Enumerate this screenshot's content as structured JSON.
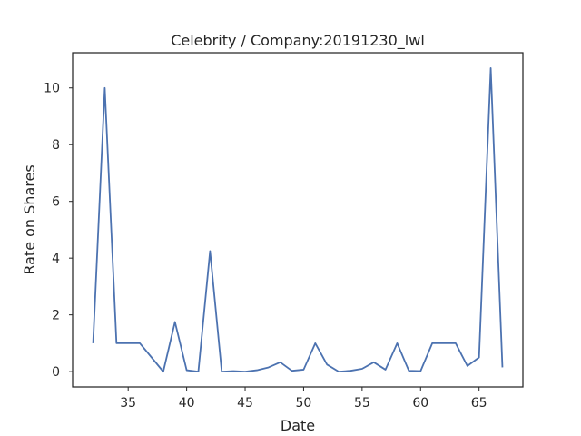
{
  "chart_data": {
    "type": "line",
    "title": "Celebrity / Company:20191230_lwl",
    "xlabel": "Date",
    "ylabel": "Rate on Shares",
    "xlim": [
      30.25,
      68.75
    ],
    "ylim": [
      -0.54,
      11.24
    ],
    "xticks": [
      35,
      40,
      45,
      50,
      55,
      60,
      65
    ],
    "yticks": [
      0,
      2,
      4,
      6,
      8,
      10
    ],
    "grid": false,
    "line_color": "#4c72b0",
    "series": [
      {
        "x": [
          32,
          33,
          34,
          35,
          36,
          37,
          38,
          39,
          40,
          41,
          42,
          43,
          44,
          45,
          46,
          47,
          48,
          49,
          50,
          51,
          52,
          53,
          54,
          55,
          56,
          57,
          58,
          59,
          60,
          61,
          62,
          63,
          64,
          65,
          66,
          67
        ],
        "values": [
          1.0,
          10.0,
          1.0,
          1.0,
          1.0,
          0.5,
          0.0,
          1.75,
          0.05,
          0.0,
          4.25,
          0.0,
          0.02,
          0.0,
          0.05,
          0.15,
          0.33,
          0.03,
          0.07,
          1.0,
          0.25,
          0.0,
          0.03,
          0.1,
          0.33,
          0.07,
          1.0,
          0.03,
          0.02,
          1.0,
          1.0,
          1.0,
          0.2,
          0.5,
          10.7,
          0.15
        ]
      }
    ]
  }
}
